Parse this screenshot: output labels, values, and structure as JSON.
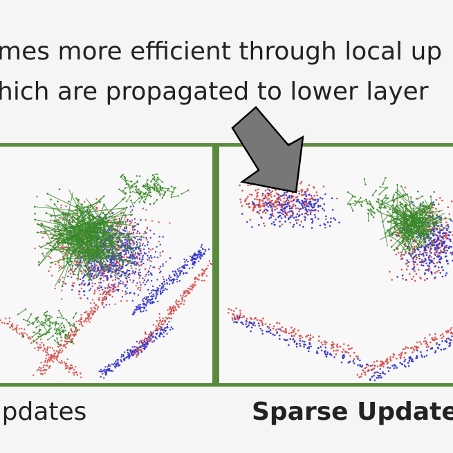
{
  "caption": {
    "line1": "mes more efficient through local up",
    "line2": "hich are propagated to lower layer"
  },
  "panels": {
    "left_label": "Jpdates",
    "right_label": "Sparse Updates"
  },
  "colors": {
    "frame": "#5c8a3c",
    "points_red": "#d9534f",
    "points_blue": "#3b3bd1",
    "graph_green": "#3a8a2a",
    "arrow_fill": "#777777"
  },
  "icons": {
    "arrow": "pointer-arrow-icon"
  }
}
